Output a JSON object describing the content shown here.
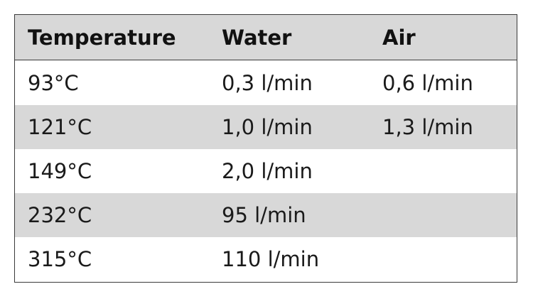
{
  "table": {
    "headers": [
      "Temperature",
      "Water",
      "Air"
    ],
    "rows": [
      [
        "93°C",
        "0,3 l/min",
        "0,6 l/min"
      ],
      [
        "121°C",
        "1,0 l/min",
        "1,3 l/min"
      ],
      [
        "149°C",
        "2,0 l/min",
        ""
      ],
      [
        "232°C",
        "95 l/min",
        ""
      ],
      [
        "315°C",
        "110 l/min",
        ""
      ]
    ]
  },
  "colors": {
    "header_bg": "#d8d8d8",
    "shade_bg": "#d8d8d8",
    "border": "#3a3a3a",
    "text": "#1a1a1a"
  }
}
